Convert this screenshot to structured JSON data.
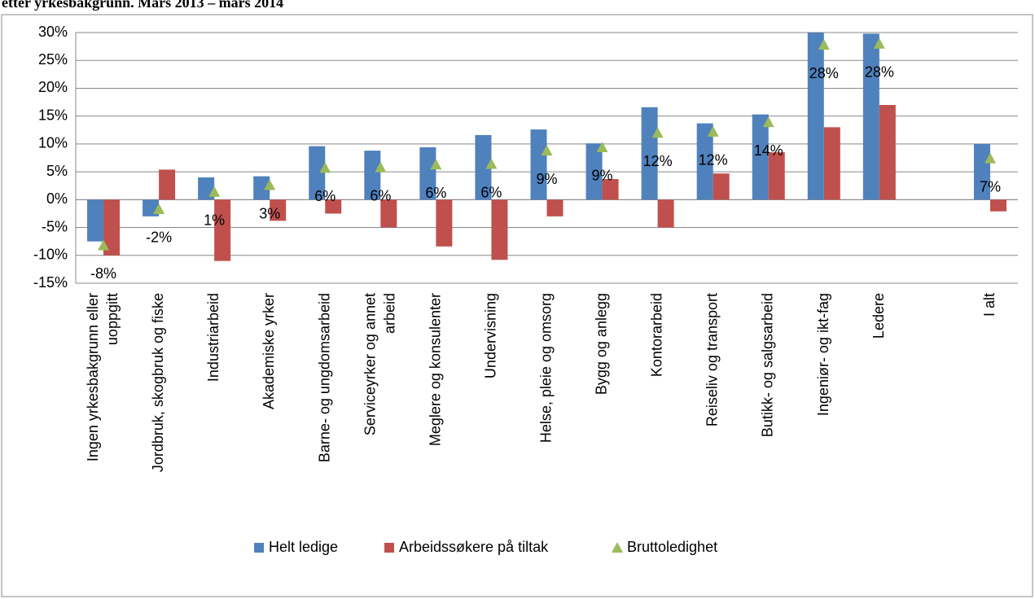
{
  "chart_data": {
    "type": "bar",
    "title": "etter yrkesbakgrunn. Mars 2013 – mars 2014",
    "categories": [
      "Ingen yrkesbakgrunn eller uoppgitt",
      "Jordbruk, skogbruk og fiske",
      "Industriarbeid",
      "Akademiske yrker",
      "Barne- og ungdomsarbeid",
      "Serviceyrker og annet arbeid",
      "Meglere og konsulenter",
      "Undervisning",
      "Helse, pleie og omsorg",
      "Bygg og anlegg",
      "Kontorarbeid",
      "Reiseliv og transport",
      "Butikk- og salgsarbeid",
      "Ingeniør- og ikt-fag",
      "Ledere",
      null,
      "I alt"
    ],
    "series": [
      {
        "name": "Helt ledige",
        "type": "bar",
        "color": "#4f81bd",
        "values": [
          -7.5,
          -3,
          4,
          4.2,
          9.6,
          8.8,
          9.4,
          11.6,
          12.6,
          10.1,
          16.6,
          13.7,
          15.3,
          30,
          29.8,
          null,
          10
        ]
      },
      {
        "name": "Arbeidssøkere på tiltak",
        "type": "bar",
        "color": "#c0504d",
        "values": [
          -10,
          5.4,
          -11,
          -3.8,
          -2.5,
          -5,
          -8.4,
          -10.8,
          -3,
          3.7,
          -5,
          4.7,
          8.5,
          13,
          17,
          null,
          -2.1
        ]
      },
      {
        "name": "Bruttoledighet",
        "type": "scatter",
        "color": "#9bbb59",
        "values": [
          -8.2,
          -1.7,
          1.4,
          2.6,
          5.7,
          5.8,
          6.3,
          6.4,
          8.8,
          9.4,
          12,
          12.2,
          13.9,
          27.8,
          28,
          null,
          7.4
        ],
        "value_labels": [
          "-8%",
          "-2%",
          "1%",
          "3%",
          "6%",
          "6%",
          "6%",
          "6%",
          "9%",
          "9%",
          "12%",
          "12%",
          "14%",
          "28%",
          "28%",
          null,
          "7%"
        ]
      }
    ],
    "ylim": [
      -15,
      30
    ],
    "yticks": [
      {
        "value": -15,
        "label": "-15%"
      },
      {
        "value": -10,
        "label": "-10%"
      },
      {
        "value": -5,
        "label": "-5%"
      },
      {
        "value": 0,
        "label": "0%"
      },
      {
        "value": 5,
        "label": "5%"
      },
      {
        "value": 10,
        "label": "10%"
      },
      {
        "value": 15,
        "label": "15%"
      },
      {
        "value": 20,
        "label": "20%"
      },
      {
        "value": 25,
        "label": "25%"
      },
      {
        "value": 30,
        "label": "30%"
      }
    ],
    "grid": true,
    "legend": "bottom"
  }
}
